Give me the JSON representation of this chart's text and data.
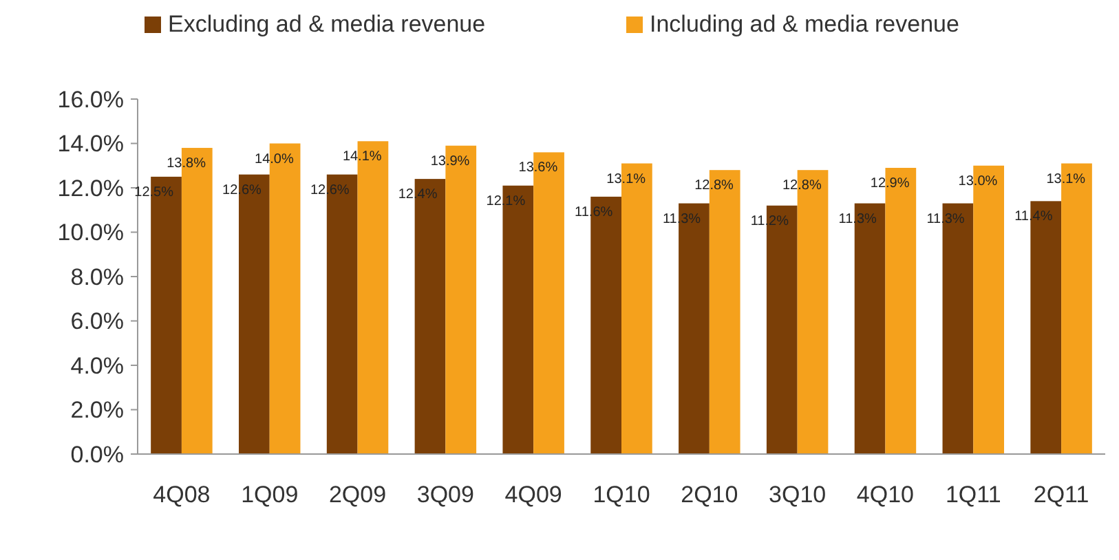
{
  "chart_data": {
    "type": "bar",
    "categories": [
      "4Q08",
      "1Q09",
      "2Q09",
      "3Q09",
      "4Q09",
      "1Q10",
      "2Q10",
      "3Q10",
      "4Q10",
      "1Q11",
      "2Q11"
    ],
    "series": [
      {
        "name": "Excluding ad & media revenue",
        "color": "#7b3f07",
        "values": [
          12.5,
          12.6,
          12.6,
          12.4,
          12.1,
          11.6,
          11.3,
          11.2,
          11.3,
          11.3,
          11.4
        ],
        "value_labels": [
          "12.5%",
          "12.6%",
          "12.6%",
          "12.4%",
          "12.1%",
          "11.6%",
          "11.3%",
          "11.2%",
          "11.3%",
          "11.3%",
          "11.4%"
        ]
      },
      {
        "name": "Including ad & media revenue",
        "color": "#f5a11c",
        "values": [
          13.8,
          14.0,
          14.1,
          13.9,
          13.6,
          13.1,
          12.8,
          12.8,
          12.9,
          13.0,
          13.1
        ],
        "value_labels": [
          "13.8%",
          "14.0%",
          "14.1%",
          "13.9%",
          "13.6%",
          "13.1%",
          "12.8%",
          "12.8%",
          "12.9%",
          "13.0%",
          "13.1%"
        ]
      }
    ],
    "ylim": [
      0,
      16
    ],
    "yticks": [
      {
        "value": 0,
        "label": "0.0%"
      },
      {
        "value": 2,
        "label": "2.0%"
      },
      {
        "value": 4,
        "label": "4.0%"
      },
      {
        "value": 6,
        "label": "6.0%"
      },
      {
        "value": 8,
        "label": "8.0%"
      },
      {
        "value": 10,
        "label": "10.0%"
      },
      {
        "value": 12,
        "label": "12.0%"
      },
      {
        "value": 14,
        "label": "14.0%"
      },
      {
        "value": 16,
        "label": "16.0%"
      }
    ],
    "grid": false,
    "legend": "top"
  }
}
